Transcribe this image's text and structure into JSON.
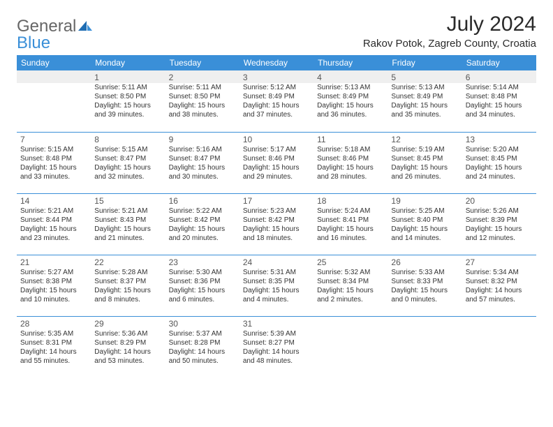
{
  "logo": {
    "part1": "General",
    "part2": "Blue"
  },
  "title": "July 2024",
  "location": "Rakov Potok, Zagreb County, Croatia",
  "header_bg": "#3a8fd8",
  "header_fg": "#ffffff",
  "divider_color": "#3a8fd8",
  "shade_bg": "#efefef",
  "days": [
    "Sunday",
    "Monday",
    "Tuesday",
    "Wednesday",
    "Thursday",
    "Friday",
    "Saturday"
  ],
  "weeks": [
    [
      null,
      {
        "n": "1",
        "sr": "Sunrise: 5:11 AM",
        "ss": "Sunset: 8:50 PM",
        "d1": "Daylight: 15 hours",
        "d2": "and 39 minutes."
      },
      {
        "n": "2",
        "sr": "Sunrise: 5:11 AM",
        "ss": "Sunset: 8:50 PM",
        "d1": "Daylight: 15 hours",
        "d2": "and 38 minutes."
      },
      {
        "n": "3",
        "sr": "Sunrise: 5:12 AM",
        "ss": "Sunset: 8:49 PM",
        "d1": "Daylight: 15 hours",
        "d2": "and 37 minutes."
      },
      {
        "n": "4",
        "sr": "Sunrise: 5:13 AM",
        "ss": "Sunset: 8:49 PM",
        "d1": "Daylight: 15 hours",
        "d2": "and 36 minutes."
      },
      {
        "n": "5",
        "sr": "Sunrise: 5:13 AM",
        "ss": "Sunset: 8:49 PM",
        "d1": "Daylight: 15 hours",
        "d2": "and 35 minutes."
      },
      {
        "n": "6",
        "sr": "Sunrise: 5:14 AM",
        "ss": "Sunset: 8:48 PM",
        "d1": "Daylight: 15 hours",
        "d2": "and 34 minutes."
      }
    ],
    [
      {
        "n": "7",
        "sr": "Sunrise: 5:15 AM",
        "ss": "Sunset: 8:48 PM",
        "d1": "Daylight: 15 hours",
        "d2": "and 33 minutes."
      },
      {
        "n": "8",
        "sr": "Sunrise: 5:15 AM",
        "ss": "Sunset: 8:47 PM",
        "d1": "Daylight: 15 hours",
        "d2": "and 32 minutes."
      },
      {
        "n": "9",
        "sr": "Sunrise: 5:16 AM",
        "ss": "Sunset: 8:47 PM",
        "d1": "Daylight: 15 hours",
        "d2": "and 30 minutes."
      },
      {
        "n": "10",
        "sr": "Sunrise: 5:17 AM",
        "ss": "Sunset: 8:46 PM",
        "d1": "Daylight: 15 hours",
        "d2": "and 29 minutes."
      },
      {
        "n": "11",
        "sr": "Sunrise: 5:18 AM",
        "ss": "Sunset: 8:46 PM",
        "d1": "Daylight: 15 hours",
        "d2": "and 28 minutes."
      },
      {
        "n": "12",
        "sr": "Sunrise: 5:19 AM",
        "ss": "Sunset: 8:45 PM",
        "d1": "Daylight: 15 hours",
        "d2": "and 26 minutes."
      },
      {
        "n": "13",
        "sr": "Sunrise: 5:20 AM",
        "ss": "Sunset: 8:45 PM",
        "d1": "Daylight: 15 hours",
        "d2": "and 24 minutes."
      }
    ],
    [
      {
        "n": "14",
        "sr": "Sunrise: 5:21 AM",
        "ss": "Sunset: 8:44 PM",
        "d1": "Daylight: 15 hours",
        "d2": "and 23 minutes."
      },
      {
        "n": "15",
        "sr": "Sunrise: 5:21 AM",
        "ss": "Sunset: 8:43 PM",
        "d1": "Daylight: 15 hours",
        "d2": "and 21 minutes."
      },
      {
        "n": "16",
        "sr": "Sunrise: 5:22 AM",
        "ss": "Sunset: 8:42 PM",
        "d1": "Daylight: 15 hours",
        "d2": "and 20 minutes."
      },
      {
        "n": "17",
        "sr": "Sunrise: 5:23 AM",
        "ss": "Sunset: 8:42 PM",
        "d1": "Daylight: 15 hours",
        "d2": "and 18 minutes."
      },
      {
        "n": "18",
        "sr": "Sunrise: 5:24 AM",
        "ss": "Sunset: 8:41 PM",
        "d1": "Daylight: 15 hours",
        "d2": "and 16 minutes."
      },
      {
        "n": "19",
        "sr": "Sunrise: 5:25 AM",
        "ss": "Sunset: 8:40 PM",
        "d1": "Daylight: 15 hours",
        "d2": "and 14 minutes."
      },
      {
        "n": "20",
        "sr": "Sunrise: 5:26 AM",
        "ss": "Sunset: 8:39 PM",
        "d1": "Daylight: 15 hours",
        "d2": "and 12 minutes."
      }
    ],
    [
      {
        "n": "21",
        "sr": "Sunrise: 5:27 AM",
        "ss": "Sunset: 8:38 PM",
        "d1": "Daylight: 15 hours",
        "d2": "and 10 minutes."
      },
      {
        "n": "22",
        "sr": "Sunrise: 5:28 AM",
        "ss": "Sunset: 8:37 PM",
        "d1": "Daylight: 15 hours",
        "d2": "and 8 minutes."
      },
      {
        "n": "23",
        "sr": "Sunrise: 5:30 AM",
        "ss": "Sunset: 8:36 PM",
        "d1": "Daylight: 15 hours",
        "d2": "and 6 minutes."
      },
      {
        "n": "24",
        "sr": "Sunrise: 5:31 AM",
        "ss": "Sunset: 8:35 PM",
        "d1": "Daylight: 15 hours",
        "d2": "and 4 minutes."
      },
      {
        "n": "25",
        "sr": "Sunrise: 5:32 AM",
        "ss": "Sunset: 8:34 PM",
        "d1": "Daylight: 15 hours",
        "d2": "and 2 minutes."
      },
      {
        "n": "26",
        "sr": "Sunrise: 5:33 AM",
        "ss": "Sunset: 8:33 PM",
        "d1": "Daylight: 15 hours",
        "d2": "and 0 minutes."
      },
      {
        "n": "27",
        "sr": "Sunrise: 5:34 AM",
        "ss": "Sunset: 8:32 PM",
        "d1": "Daylight: 14 hours",
        "d2": "and 57 minutes."
      }
    ],
    [
      {
        "n": "28",
        "sr": "Sunrise: 5:35 AM",
        "ss": "Sunset: 8:31 PM",
        "d1": "Daylight: 14 hours",
        "d2": "and 55 minutes."
      },
      {
        "n": "29",
        "sr": "Sunrise: 5:36 AM",
        "ss": "Sunset: 8:29 PM",
        "d1": "Daylight: 14 hours",
        "d2": "and 53 minutes."
      },
      {
        "n": "30",
        "sr": "Sunrise: 5:37 AM",
        "ss": "Sunset: 8:28 PM",
        "d1": "Daylight: 14 hours",
        "d2": "and 50 minutes."
      },
      {
        "n": "31",
        "sr": "Sunrise: 5:39 AM",
        "ss": "Sunset: 8:27 PM",
        "d1": "Daylight: 14 hours",
        "d2": "and 48 minutes."
      },
      null,
      null,
      null
    ]
  ]
}
